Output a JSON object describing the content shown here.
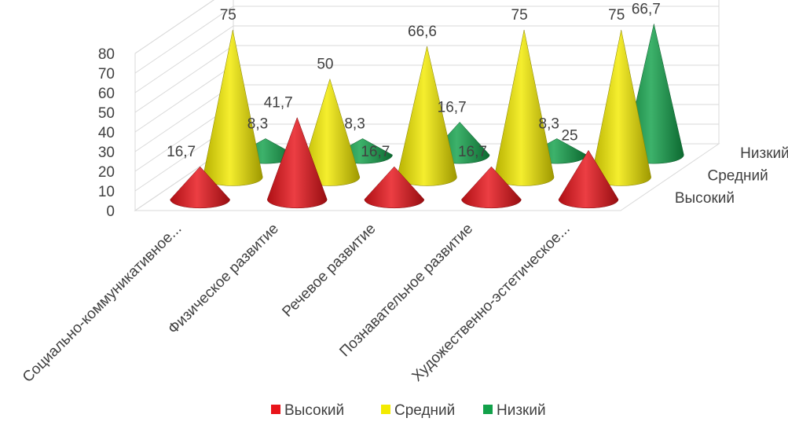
{
  "chart_data": {
    "type": "bar",
    "style": "3d-cone",
    "title": "",
    "ylim": [
      0,
      80
    ],
    "y_ticks": [
      "0",
      "10",
      "20",
      "30",
      "40",
      "50",
      "60",
      "70",
      "80"
    ],
    "grid": true,
    "legend_position": "bottom",
    "categories": [
      "Социально-коммуникативное...",
      "Физическое развитие",
      "Речевое развитие",
      "Познавательное развитие",
      "Художественно-эстетическое..."
    ],
    "series": [
      {
        "name": "Высокий",
        "color": "#e8141a",
        "values": [
          16.7,
          41.7,
          16.7,
          16.7,
          25
        ],
        "labels": [
          "16,7",
          "41,7",
          "16,7",
          "16,7",
          "25"
        ]
      },
      {
        "name": "Средний",
        "color": "#f3ea00",
        "values": [
          75,
          50,
          66.6,
          75,
          75
        ],
        "labels": [
          "75",
          "50",
          "66,6",
          "75",
          "75"
        ]
      },
      {
        "name": "Низкий",
        "color": "#12a14a",
        "values": [
          8.3,
          8.3,
          16.7,
          8.3,
          66.7
        ],
        "labels": [
          "8,3",
          "8,3",
          "16,7",
          "8,3",
          "66,7"
        ]
      }
    ]
  }
}
